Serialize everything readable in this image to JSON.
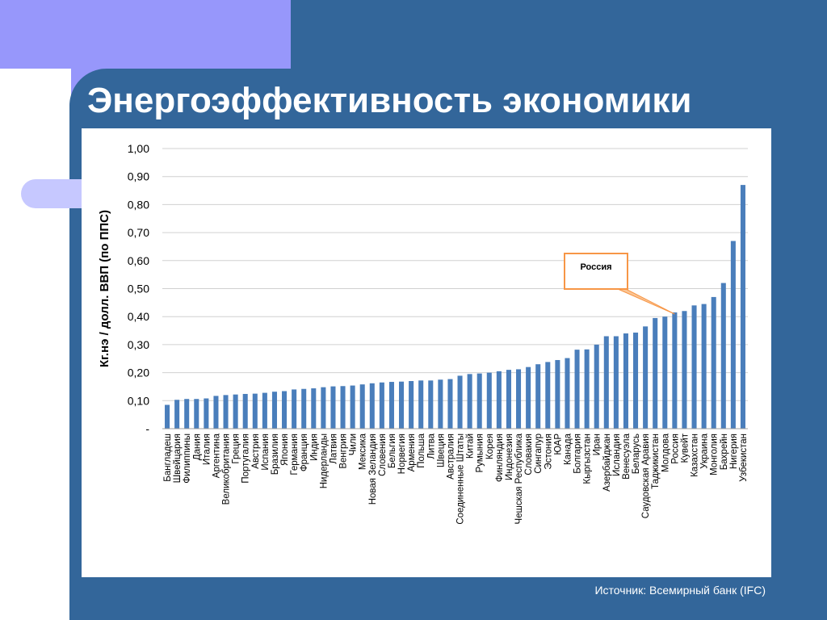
{
  "slide": {
    "title": "Энергоэффективность экономики",
    "source": "Источник: Всемирный банк (IFC)"
  },
  "colors": {
    "bar": "#4a7ebb",
    "panel": "#33669a",
    "accent_lilac": "#9797fb",
    "callout_border": "#f79646"
  },
  "chart_data": {
    "type": "bar",
    "title": "",
    "xlabel": "",
    "ylabel": "Кг.нэ / долл. ВВП (по ППС)",
    "ylim": [
      0,
      1.0
    ],
    "yticks": [
      0,
      0.1,
      0.2,
      0.3,
      0.4,
      0.5,
      0.6,
      0.7,
      0.8,
      0.9,
      1.0
    ],
    "ytick_labels": [
      "-",
      "0,10",
      "0,20",
      "0,30",
      "0,40",
      "0,50",
      "0,60",
      "0,70",
      "0,80",
      "0,90",
      "1,00"
    ],
    "grid": true,
    "categories": [
      "Бангладеш",
      "Швейцария",
      "Филиппины",
      "Дания",
      "Италия",
      "Аргентина",
      "Великобритания",
      "Греция",
      "Португалия",
      "Австрия",
      "Испания",
      "Бразилия",
      "Япония",
      "Германия",
      "Франция",
      "Индия",
      "Нидерланды",
      "Латвия",
      "Венгрия",
      "Чили",
      "Мексика",
      "Новая Зеландия",
      "Словения",
      "Бельгия",
      "Норвегия",
      "Армения",
      "Польша",
      "Литва",
      "Швеция",
      "Австралия",
      "Соединенные Штаты",
      "Китай",
      "Румыния",
      "Корея",
      "Финляндия",
      "Индонезия",
      "Чешская Республика",
      "Словакия",
      "Сингапур",
      "Эстония",
      "ЮАР",
      "Канада",
      "Болгария",
      "Кыргызстан",
      "Иран",
      "Азербайджан",
      "Исландия",
      "Венесуэла",
      "Беларусь",
      "Саудовская Аравия",
      "Таджикистан",
      "Молдова",
      "Россия",
      "Кувейт",
      "Казахстан",
      "Украина",
      "Монголия",
      "Бахрейн",
      "Нигерия",
      "Узбекистан"
    ],
    "values": [
      0.085,
      0.103,
      0.106,
      0.106,
      0.108,
      0.117,
      0.12,
      0.122,
      0.124,
      0.125,
      0.128,
      0.132,
      0.134,
      0.14,
      0.142,
      0.144,
      0.148,
      0.151,
      0.152,
      0.154,
      0.158,
      0.162,
      0.165,
      0.167,
      0.168,
      0.17,
      0.172,
      0.172,
      0.175,
      0.177,
      0.189,
      0.195,
      0.197,
      0.2,
      0.205,
      0.21,
      0.212,
      0.22,
      0.23,
      0.238,
      0.245,
      0.252,
      0.282,
      0.283,
      0.3,
      0.33,
      0.33,
      0.34,
      0.343,
      0.365,
      0.395,
      0.4,
      0.415,
      0.42,
      0.44,
      0.445,
      0.47,
      0.52,
      0.67,
      0.87
    ],
    "annotations": [
      {
        "text": "Россия",
        "category": "Россия"
      }
    ]
  }
}
